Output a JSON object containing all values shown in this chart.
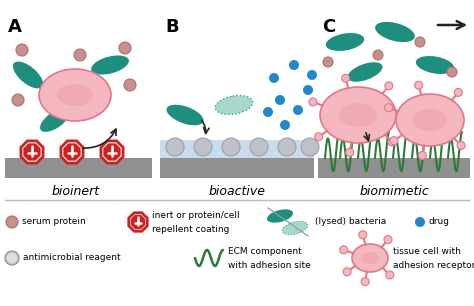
{
  "bg_color": "#ffffff",
  "section_labels": [
    "A",
    "B",
    "C"
  ],
  "section_titles": [
    "bioinert",
    "bioactive",
    "biomimetic"
  ],
  "colors": {
    "teal": "#1e8f7f",
    "teal_light": "#2aaa90",
    "teal_lysed_fill": "#a8d8cc",
    "teal_lysed_edge": "#2aaa90",
    "pink_fill": "#f5b8c0",
    "pink_edge": "#e07888",
    "pink_nucleus": "#e896a4",
    "serum_fill": "#c8908c",
    "serum_edge": "#b07070",
    "red_ring_edge": "#cc2222",
    "red_ring_fill": "#cc2222",
    "gray_surface": "#909090",
    "gray_bead": "#c0c0c8",
    "gray_bead_edge": "#a0a0b0",
    "light_blue_surface": "#c8dcef",
    "blue_dot": "#2288cc",
    "green_ecm": "#2d7a3a",
    "arrow_color": "#222222",
    "line_color": "#bbbbbb",
    "spike_color": "#e07888",
    "spike_ball": "#f5b8c0"
  }
}
